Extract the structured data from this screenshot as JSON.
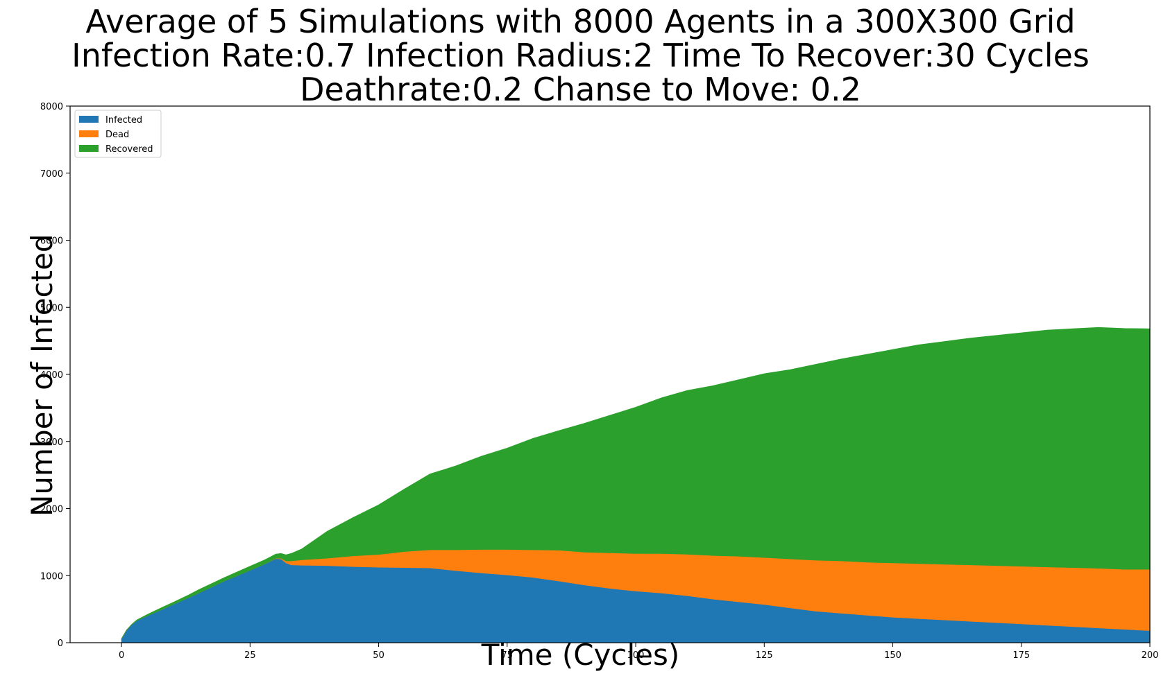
{
  "chart_data": {
    "type": "area",
    "stacked": true,
    "title": [
      "Average of 5 Simulations with 8000 Agents in a 300X300 Grid",
      "Infection Rate:0.7  Infection Radius:2  Time To Recover:30 Cycles",
      "Deathrate:0.2  Chanse to Move: 0.2"
    ],
    "xlabel": "Time (Cycles)",
    "ylabel": "Number of Infected",
    "xlim": [
      -10,
      200
    ],
    "ylim": [
      0,
      8000
    ],
    "xticks": [
      "0",
      "25",
      "50",
      "75",
      "100",
      "125",
      "150",
      "175",
      "200"
    ],
    "yticks": [
      "0",
      "1000",
      "2000",
      "3000",
      "4000",
      "5000",
      "6000",
      "7000",
      "8000"
    ],
    "legend_position": "top-left",
    "grid": false,
    "x": [
      0,
      1,
      2,
      3,
      5,
      8,
      10,
      13,
      15,
      20,
      25,
      28,
      30,
      31,
      32,
      33,
      35,
      40,
      45,
      50,
      55,
      60,
      65,
      70,
      75,
      80,
      85,
      90,
      95,
      100,
      105,
      110,
      115,
      120,
      125,
      130,
      135,
      140,
      145,
      150,
      155,
      160,
      165,
      170,
      175,
      180,
      185,
      190,
      195,
      200
    ],
    "series": [
      {
        "name": "Infected",
        "color": "#1f77b4",
        "values": [
          60,
          190,
          270,
          330,
          400,
          500,
          570,
          670,
          740,
          920,
          1080,
          1180,
          1255,
          1250,
          1190,
          1160,
          1155,
          1150,
          1135,
          1125,
          1120,
          1115,
          1075,
          1040,
          1010,
          975,
          920,
          860,
          810,
          770,
          740,
          700,
          650,
          610,
          570,
          520,
          470,
          440,
          410,
          380,
          360,
          340,
          320,
          300,
          280,
          260,
          240,
          220,
          200,
          180
        ]
      },
      {
        "name": "Dead",
        "color": "#ff7f0e",
        "values": [
          0,
          0,
          0,
          0,
          0,
          0,
          0,
          0,
          0,
          0,
          0,
          0,
          5,
          10,
          30,
          60,
          80,
          110,
          160,
          190,
          240,
          270,
          310,
          350,
          380,
          410,
          460,
          490,
          530,
          560,
          590,
          620,
          650,
          680,
          700,
          730,
          760,
          780,
          790,
          810,
          820,
          830,
          840,
          850,
          860,
          870,
          880,
          890,
          895,
          915
        ]
      },
      {
        "name": "Recovered",
        "color": "#2ca02c",
        "values": [
          0,
          0,
          5,
          10,
          20,
          30,
          30,
          40,
          50,
          50,
          60,
          60,
          60,
          70,
          90,
          110,
          160,
          400,
          570,
          740,
          930,
          1130,
          1250,
          1390,
          1510,
          1660,
          1780,
          1920,
          2050,
          2180,
          2320,
          2440,
          2530,
          2630,
          2740,
          2820,
          2920,
          3010,
          3100,
          3180,
          3260,
          3320,
          3380,
          3430,
          3480,
          3530,
          3560,
          3590,
          3590,
          3585
        ]
      }
    ]
  }
}
